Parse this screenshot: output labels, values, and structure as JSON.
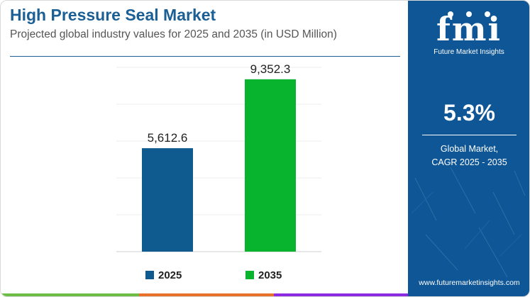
{
  "header": {
    "title": "High Pressure Seal Market",
    "subtitle": "Projected global industry values for 2025 and 2035 (in USD Million)"
  },
  "chart_data": {
    "type": "bar",
    "title": "High Pressure Seal Market",
    "subtitle": "Projected global industry values for 2025 and 2035 (in USD Million)",
    "categories": [
      "2025",
      "2035"
    ],
    "values": [
      5612.6,
      9352.3
    ],
    "value_labels": [
      "5,612.6",
      "9,352.3"
    ],
    "colors": [
      "#0f5a8f",
      "#08b32d"
    ],
    "ylim": [
      0,
      10000
    ],
    "grid": true,
    "legend_position": "bottom"
  },
  "side_panel": {
    "logo_text": "fmi",
    "logo_tagline": "Future Market Insights",
    "stat_value": "5.3%",
    "stat_line1": "Global Market,",
    "stat_line2": "CAGR 2025 - 2035",
    "website": "www.futuremarketinsights.com",
    "background_color": "#0e5696"
  },
  "colors": {
    "title": "#1b5f95",
    "strip_green": "#6cbd45",
    "strip_orange": "#e8702a",
    "strip_purple": "#8a2be2"
  }
}
